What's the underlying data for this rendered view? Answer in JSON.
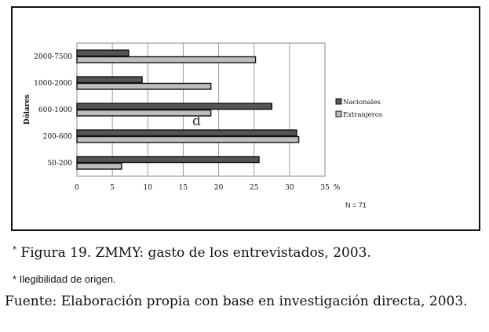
{
  "chart_data": {
    "type": "bar",
    "orientation": "horizontal",
    "ylabel": "Dólares",
    "xunit": "%",
    "categories": [
      "2000-7500",
      "1000-2000",
      "600-1000",
      "200-600",
      "50-200"
    ],
    "series": [
      {
        "name": "Nacionales",
        "values": [
          7.3,
          9.2,
          27.5,
          31.0,
          25.7
        ],
        "color": "#555555"
      },
      {
        "name": "Extranjeros",
        "values": [
          25.2,
          18.9,
          18.9,
          31.3,
          6.3
        ],
        "color": "#bdbdbd"
      }
    ],
    "xticks": [
      "0",
      "5",
      "10",
      "15",
      "20",
      "25",
      "30",
      "35"
    ],
    "xlim": [
      0,
      35
    ],
    "grid": true,
    "legend": "right",
    "annotation": "d",
    "n_label": "N = 71"
  },
  "caption": {
    "marker": "*",
    "text": " Figura 19. ZMMY: gasto de los entrevistados, 2003."
  },
  "note": "* Ilegibilidad de origen.",
  "source": "Fuente: Elaboración propia con base en investigación directa, 2003."
}
